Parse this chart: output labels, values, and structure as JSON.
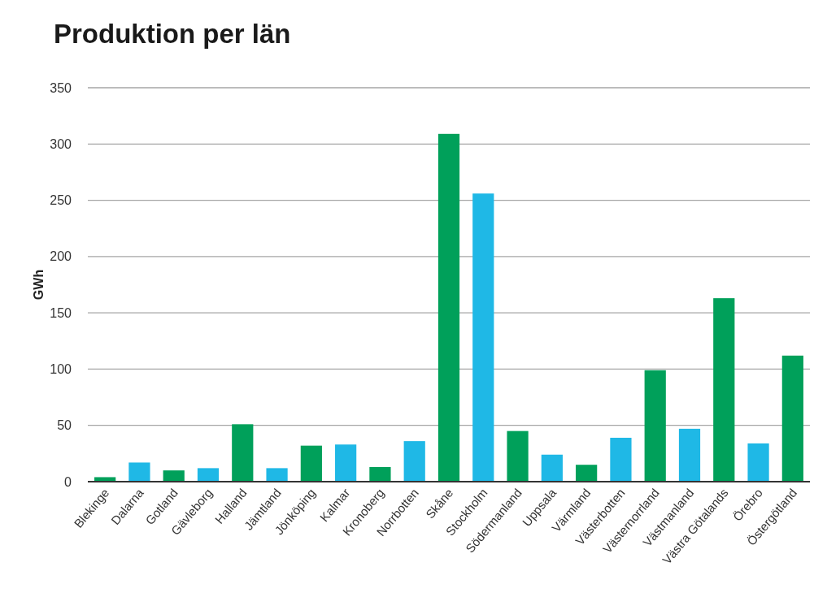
{
  "chart_data": {
    "type": "bar",
    "title": "Produktion per län",
    "ylabel": "GWh",
    "categories": [
      "Blekinge",
      "Dalarna",
      "Gotland",
      "Gävleborg",
      "Halland",
      "Jämtland",
      "Jönköping",
      "Kalmar",
      "Kronoberg",
      "Norrbotten",
      "Skåne",
      "Stockholm",
      "Södermanland",
      "Uppsala",
      "Värmland",
      "Västerbotten",
      "Västernorrland",
      "Västmanland",
      "Västra Götalands",
      "Örebro",
      "Östergötland"
    ],
    "values": [
      4,
      17,
      10,
      12,
      51,
      12,
      32,
      33,
      13,
      36,
      309,
      256,
      45,
      24,
      15,
      39,
      99,
      47,
      163,
      34,
      112
    ],
    "colors": [
      "#00a05a",
      "#1fb8e6",
      "#00a05a",
      "#1fb8e6",
      "#00a05a",
      "#1fb8e6",
      "#00a05a",
      "#1fb8e6",
      "#00a05a",
      "#1fb8e6",
      "#00a05a",
      "#1fb8e6",
      "#00a05a",
      "#1fb8e6",
      "#00a05a",
      "#1fb8e6",
      "#00a05a",
      "#1fb8e6",
      "#00a05a",
      "#1fb8e6",
      "#00a05a"
    ],
    "ylim": [
      0,
      350
    ],
    "yticks": [
      0,
      50,
      100,
      150,
      200,
      250,
      300,
      350
    ],
    "grid": "y"
  }
}
